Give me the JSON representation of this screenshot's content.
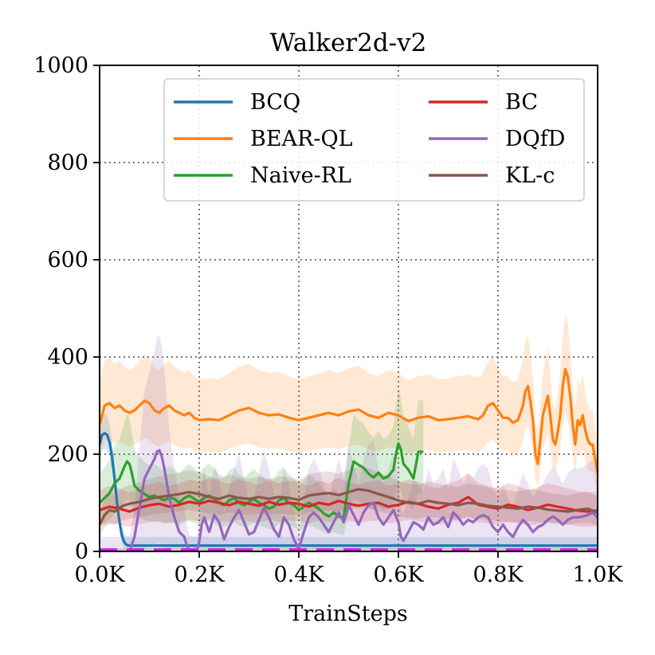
{
  "chart_data": {
    "type": "line",
    "title": "Walker2d-v2",
    "xlabel": "TrainSteps",
    "ylabel": "",
    "xlim": [
      0,
      1000
    ],
    "ylim": [
      0,
      1000
    ],
    "x_ticks": [
      0,
      200,
      400,
      600,
      800,
      1000
    ],
    "x_tick_labels": [
      "0.0K",
      "0.2K",
      "0.4K",
      "0.6K",
      "0.8K",
      "1.0K"
    ],
    "y_ticks": [
      0,
      200,
      400,
      600,
      800,
      1000
    ],
    "y_tick_labels": [
      "0",
      "200",
      "400",
      "600",
      "800",
      "1000"
    ],
    "grid": true,
    "legend_position": "top-right",
    "series": [
      {
        "name": "BCQ",
        "color": "#1f77b4",
        "x": [
          0,
          5,
          10,
          15,
          20,
          25,
          30,
          35,
          40,
          45,
          50,
          55,
          60,
          70,
          80,
          100,
          200,
          400,
          600,
          800,
          1000
        ],
        "y": [
          220,
          240,
          243,
          240,
          225,
          195,
          150,
          100,
          60,
          32,
          18,
          13,
          12,
          12,
          12,
          12,
          12,
          12,
          12,
          12,
          12
        ]
      },
      {
        "name": "BEAR-QL",
        "color": "#ff7f0e",
        "x": [
          0,
          10,
          20,
          30,
          40,
          50,
          60,
          70,
          80,
          90,
          100,
          110,
          120,
          130,
          140,
          150,
          160,
          170,
          180,
          190,
          200,
          220,
          240,
          260,
          280,
          300,
          320,
          340,
          360,
          380,
          400,
          420,
          440,
          460,
          480,
          500,
          520,
          540,
          560,
          580,
          600,
          620,
          640,
          660,
          680,
          700,
          720,
          740,
          760,
          770,
          780,
          790,
          800,
          810,
          820,
          830,
          840,
          850,
          855,
          860,
          865,
          870,
          875,
          880,
          890,
          895,
          900,
          905,
          910,
          915,
          920,
          925,
          930,
          935,
          940,
          945,
          950,
          955,
          960,
          965,
          970,
          975,
          980,
          985,
          990,
          995,
          1000
        ],
        "y": [
          260,
          300,
          305,
          295,
          300,
          290,
          285,
          290,
          300,
          310,
          305,
          290,
          285,
          295,
          300,
          290,
          285,
          280,
          285,
          275,
          270,
          272,
          270,
          280,
          290,
          295,
          285,
          280,
          282,
          275,
          270,
          275,
          280,
          285,
          280,
          288,
          292,
          280,
          275,
          285,
          280,
          268,
          275,
          278,
          270,
          272,
          275,
          278,
          272,
          280,
          300,
          305,
          290,
          275,
          275,
          265,
          270,
          300,
          330,
          340,
          310,
          270,
          200,
          180,
          280,
          300,
          320,
          280,
          230,
          220,
          245,
          280,
          340,
          375,
          360,
          320,
          260,
          220,
          270,
          260,
          280,
          250,
          230,
          220,
          220,
          190,
          160
        ]
      },
      {
        "name": "Naive-RL",
        "color": "#2ca02c",
        "x": [
          0,
          10,
          20,
          30,
          40,
          50,
          55,
          60,
          65,
          70,
          80,
          90,
          100,
          110,
          120,
          130,
          140,
          150,
          160,
          170,
          180,
          190,
          200,
          210,
          220,
          230,
          240,
          250,
          260,
          270,
          280,
          290,
          300,
          310,
          320,
          330,
          340,
          350,
          360,
          370,
          380,
          390,
          400,
          410,
          420,
          430,
          440,
          450,
          460,
          470,
          480,
          490,
          500,
          510,
          520,
          530,
          540,
          550,
          560,
          570,
          580,
          590,
          595,
          600,
          605,
          610,
          620,
          630,
          640,
          650
        ],
        "y": [
          100,
          110,
          120,
          140,
          150,
          175,
          185,
          180,
          160,
          135,
          125,
          118,
          112,
          115,
          110,
          105,
          112,
          108,
          100,
          110,
          115,
          108,
          102,
          110,
          115,
          108,
          100,
          95,
          105,
          110,
          100,
          95,
          102,
          108,
          100,
          95,
          88,
          92,
          105,
          110,
          100,
          95,
          85,
          92,
          100,
          95,
          88,
          78,
          72,
          80,
          72,
          70,
          140,
          185,
          178,
          172,
          160,
          152,
          162,
          150,
          155,
          168,
          200,
          222,
          210,
          180,
          168,
          150,
          205,
          205
        ]
      },
      {
        "name": "BC",
        "color": "#d62728",
        "x": [
          0,
          20,
          40,
          60,
          80,
          100,
          120,
          140,
          160,
          180,
          200,
          220,
          240,
          260,
          280,
          300,
          320,
          340,
          360,
          380,
          400,
          420,
          440,
          460,
          480,
          500,
          520,
          540,
          560,
          580,
          600,
          620,
          640,
          660,
          680,
          700,
          720,
          740,
          760,
          780,
          800,
          820,
          840,
          860,
          880,
          900,
          920,
          940,
          960,
          980,
          1000
        ],
        "y": [
          85,
          92,
          88,
          82,
          90,
          95,
          98,
          92,
          96,
          102,
          98,
          104,
          100,
          95,
          102,
          98,
          94,
          102,
          96,
          100,
          98,
          92,
          100,
          96,
          104,
          98,
          94,
          98,
          100,
          92,
          96,
          102,
          98,
          92,
          88,
          96,
          100,
          112,
          96,
          92,
          88,
          96,
          92,
          85,
          90,
          96,
          92,
          88,
          84,
          82,
          84
        ]
      },
      {
        "name": "DQfD",
        "color": "#9467bd",
        "x": [
          0,
          10,
          20,
          30,
          40,
          50,
          60,
          70,
          80,
          90,
          100,
          110,
          115,
          120,
          125,
          130,
          135,
          140,
          150,
          160,
          170,
          175,
          180,
          190,
          195,
          200,
          205,
          210,
          215,
          220,
          230,
          240,
          250,
          260,
          270,
          280,
          290,
          300,
          310,
          320,
          330,
          340,
          350,
          360,
          370,
          380,
          390,
          400,
          410,
          420,
          430,
          440,
          450,
          460,
          470,
          480,
          490,
          500,
          510,
          520,
          530,
          540,
          550,
          560,
          570,
          580,
          590,
          600,
          605,
          610,
          620,
          630,
          640,
          650,
          660,
          670,
          680,
          690,
          700,
          710,
          720,
          730,
          740,
          750,
          760,
          770,
          780,
          790,
          800,
          810,
          820,
          830,
          840,
          850,
          860,
          870,
          880,
          890,
          900,
          910,
          920,
          930,
          940,
          950,
          960,
          970,
          980,
          990,
          1000
        ],
        "y": [
          0,
          0,
          0,
          0,
          0,
          0,
          0,
          30,
          90,
          150,
          170,
          190,
          205,
          208,
          195,
          170,
          140,
          110,
          70,
          40,
          30,
          12,
          2,
          0,
          0,
          20,
          55,
          70,
          55,
          40,
          75,
          60,
          25,
          50,
          70,
          85,
          60,
          35,
          40,
          65,
          90,
          70,
          45,
          30,
          70,
          55,
          25,
          5,
          40,
          70,
          80,
          70,
          55,
          40,
          60,
          80,
          60,
          95,
          75,
          55,
          80,
          95,
          100,
          70,
          55,
          70,
          85,
          60,
          30,
          22,
          40,
          60,
          55,
          45,
          70,
          55,
          60,
          70,
          50,
          80,
          70,
          55,
          65,
          60,
          70,
          75,
          70,
          50,
          40,
          55,
          40,
          30,
          50,
          65,
          55,
          40,
          50,
          55,
          65,
          72,
          65,
          55,
          65,
          70,
          70,
          72,
          75,
          80,
          70
        ]
      },
      {
        "name": "KL-c",
        "color": "#8c564b",
        "x": [
          0,
          10,
          20,
          30,
          40,
          50,
          60,
          80,
          100,
          120,
          140,
          160,
          180,
          200,
          220,
          240,
          260,
          280,
          300,
          320,
          340,
          360,
          380,
          400,
          420,
          440,
          460,
          480,
          500,
          520,
          540,
          560,
          580,
          600,
          620,
          640,
          660,
          680,
          700,
          720,
          740,
          760,
          780,
          800,
          820,
          840,
          860,
          880,
          900,
          920,
          940,
          960,
          980,
          1000
        ],
        "y": [
          55,
          75,
          85,
          82,
          90,
          95,
          98,
          102,
          108,
          112,
          115,
          118,
          122,
          118,
          112,
          108,
          115,
          110,
          108,
          112,
          108,
          112,
          110,
          106,
          115,
          118,
          120,
          116,
          122,
          128,
          125,
          118,
          112,
          105,
          100,
          98,
          104,
          100,
          98,
          95,
          100,
          98,
          94,
          92,
          90,
          88,
          92,
          90,
          86,
          84,
          82,
          85,
          88,
          80
        ]
      }
    ],
    "baseline": {
      "name": "",
      "color": "#d817e6",
      "dash_color": "#c8c8c8",
      "y": 3
    }
  }
}
